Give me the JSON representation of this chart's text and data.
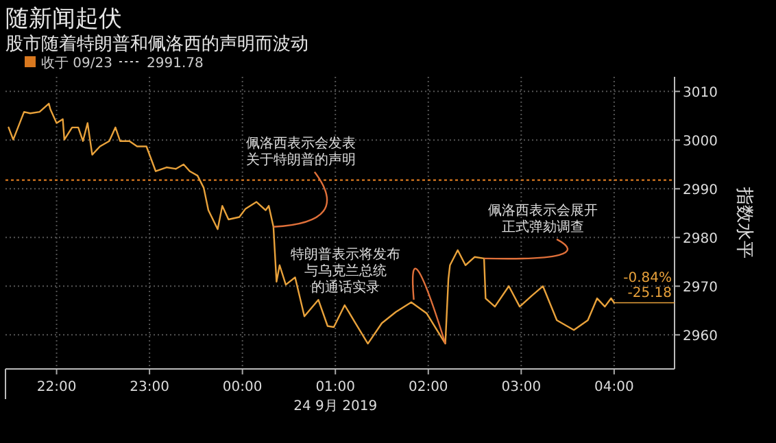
{
  "chart_data": {
    "type": "line",
    "title": "随新闻起伏",
    "subtitle": "股市随着特朗普和佩洛西的声明而波动",
    "xlabel": "24 9月 2019",
    "ylabel": "指数水平",
    "x": [
      "2019-09-23T21:29",
      "2019-09-23T21:32",
      "2019-09-23T21:39",
      "2019-09-23T21:43",
      "2019-09-23T21:49",
      "2019-09-23T21:55",
      "2019-09-23T21:56",
      "2019-09-23T22:00",
      "2019-09-23T22:04",
      "2019-09-23T22:05",
      "2019-09-23T22:10",
      "2019-09-23T22:14",
      "2019-09-23T22:17",
      "2019-09-23T22:20",
      "2019-09-23T22:23",
      "2019-09-23T22:28",
      "2019-09-23T22:34",
      "2019-09-23T22:38",
      "2019-09-23T22:41",
      "2019-09-23T22:47",
      "2019-09-23T22:52",
      "2019-09-23T22:58",
      "2019-09-23T23:04",
      "2019-09-23T23:11",
      "2019-09-23T23:17",
      "2019-09-23T23:22",
      "2019-09-23T23:26",
      "2019-09-23T23:31",
      "2019-09-23T23:35",
      "2019-09-23T23:38",
      "2019-09-23T23:44",
      "2019-09-23T23:47",
      "2019-09-23T23:51",
      "2019-09-23T23:58",
      "2019-09-24T00:02",
      "2019-09-24T00:09",
      "2019-09-24T00:15",
      "2019-09-24T00:17",
      "2019-09-24T00:20",
      "2019-09-24T00:22",
      "2019-09-24T00:24",
      "2019-09-24T00:28",
      "2019-09-24T00:34",
      "2019-09-24T00:40",
      "2019-09-24T00:49",
      "2019-09-24T00:55",
      "2019-09-24T00:59",
      "2019-09-24T01:06",
      "2019-09-24T01:13",
      "2019-09-24T01:21",
      "2019-09-24T01:30",
      "2019-09-24T01:39",
      "2019-09-24T01:49",
      "2019-09-24T01:59",
      "2019-09-24T02:11",
      "2019-09-24T02:13",
      "2019-09-24T02:14",
      "2019-09-24T02:19",
      "2019-09-24T02:24",
      "2019-09-24T02:30",
      "2019-09-24T02:36",
      "2019-09-24T02:37",
      "2019-09-24T02:43",
      "2019-09-24T02:52",
      "2019-09-24T02:59",
      "2019-09-24T03:07",
      "2019-09-24T03:14",
      "2019-09-24T03:23",
      "2019-09-24T03:34",
      "2019-09-24T03:43",
      "2019-09-24T03:49",
      "2019-09-24T03:54",
      "2019-09-24T03:58",
      "2019-09-24T04:00"
    ],
    "series": [
      {
        "color": "#e9a23b",
        "values": [
          3002.6,
          3000.1,
          3005.8,
          3005.5,
          3005.8,
          3007.5,
          3006.3,
          3003.5,
          3004.3,
          3000.1,
          3002.6,
          3002.6,
          2999.8,
          3003.5,
          2997,
          2998.7,
          2999.8,
          3002.6,
          2999.8,
          2999.8,
          2998.7,
          2998.7,
          2993.6,
          2994.4,
          2994.1,
          2995,
          2993.6,
          2992.7,
          2990.2,
          2985.6,
          2981.7,
          2986.5,
          2983.7,
          2984.2,
          2985.9,
          2987.3,
          2985.6,
          2986.5,
          2982.2,
          2970.9,
          2974.3,
          2970.3,
          2971.8,
          2963.8,
          2967.2,
          2961.8,
          2961.6,
          2966.1,
          2962.4,
          2958.2,
          2962.4,
          2964.7,
          2966.7,
          2964.4,
          2958.2,
          2971.5,
          2974.3,
          2977.4,
          2974.3,
          2976,
          2975.7,
          2967.5,
          2965.8,
          2970,
          2965.8,
          2968.1,
          2970,
          2963,
          2961,
          2963,
          2967.5,
          2965.8,
          2967.5,
          2966.6
        ]
      }
    ],
    "xlim": [
      "2019-09-23T21:27",
      "2019-09-24T04:39"
    ],
    "ylim": [
      2953,
      3013
    ],
    "xticks": [
      {
        "value": "2019-09-23T22:00",
        "label": "22:00"
      },
      {
        "value": "2019-09-23T23:00",
        "label": "23:00"
      },
      {
        "value": "2019-09-24T00:00",
        "label": "00:00"
      },
      {
        "value": "2019-09-24T01:00",
        "label": "01:00"
      },
      {
        "value": "2019-09-24T02:00",
        "label": "02:00"
      },
      {
        "value": "2019-09-24T03:00",
        "label": "03:00"
      },
      {
        "value": "2019-09-24T04:00",
        "label": "04:00"
      }
    ],
    "yticks": [
      2960,
      2970,
      2980,
      2990,
      3000,
      3010
    ],
    "ref_lines": [
      {
        "axis": "y",
        "value": 2991.78,
        "label": "收于 09/23",
        "color": "#d9781f",
        "line_style": "dotted"
      }
    ],
    "annotations": [
      {
        "text": "佩洛西表示会发表关于特朗普的声明",
        "x": "2019-09-24T00:20",
        "y": 2982.2
      },
      {
        "text": "特朗普表示将发布与乌克兰总统的通话实录",
        "x": "2019-09-24T02:11",
        "y": 2958.2
      },
      {
        "text": "佩洛西表示会展开正式弹劾调查",
        "x": "2019-09-24T02:36",
        "y": 2975.7
      },
      {
        "text": "-0.84%",
        "x": "2019-09-24T04:00",
        "y": 2966.6
      },
      {
        "text": "-25.18",
        "x": "2019-09-24T04:00",
        "y": 2966.6
      },
      "2991.78"
    ],
    "grid": true,
    "legend": "top",
    "marker": "none",
    "line_style": "solid"
  }
}
